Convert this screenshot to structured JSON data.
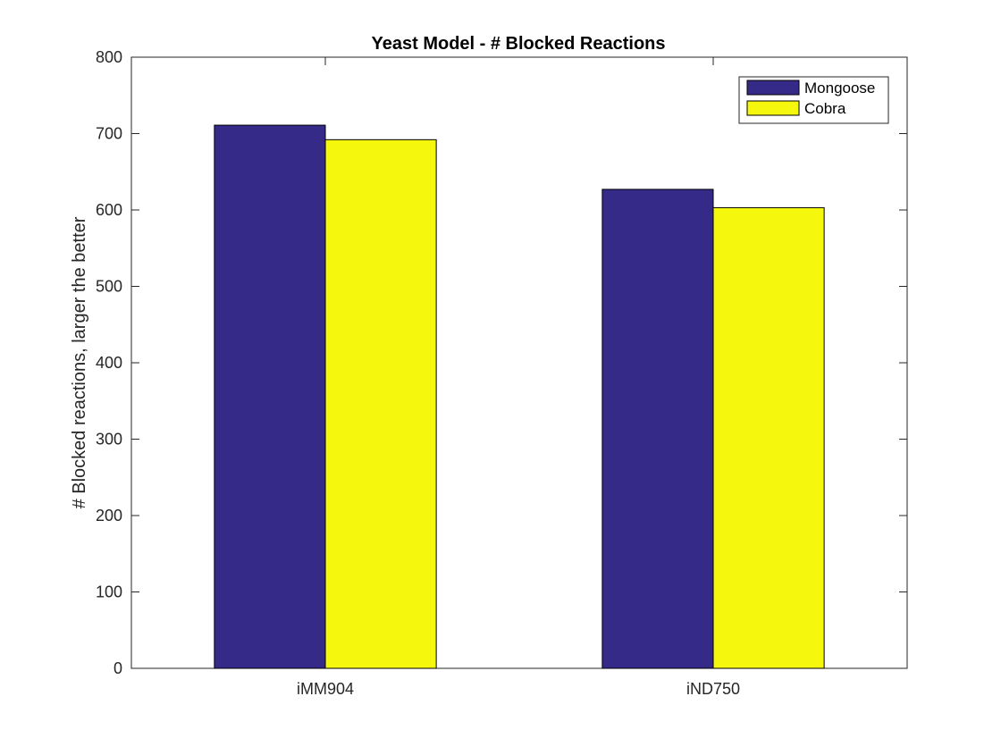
{
  "chart_data": {
    "type": "bar",
    "title": "Yeast Model - # Blocked Reactions",
    "xlabel": "",
    "ylabel": "# Blocked reactions, larger the better",
    "categories": [
      "iMM904",
      "iND750"
    ],
    "series": [
      {
        "name": "Mongoose",
        "color": "#352a87",
        "values": [
          711,
          627
        ]
      },
      {
        "name": "Cobra",
        "color": "#f5f80d",
        "values": [
          692,
          603
        ]
      }
    ],
    "ylim": [
      0,
      800
    ],
    "yticks": [
      0,
      100,
      200,
      300,
      400,
      500,
      600,
      700,
      800
    ],
    "grid": false,
    "legend_position": "top-right"
  }
}
